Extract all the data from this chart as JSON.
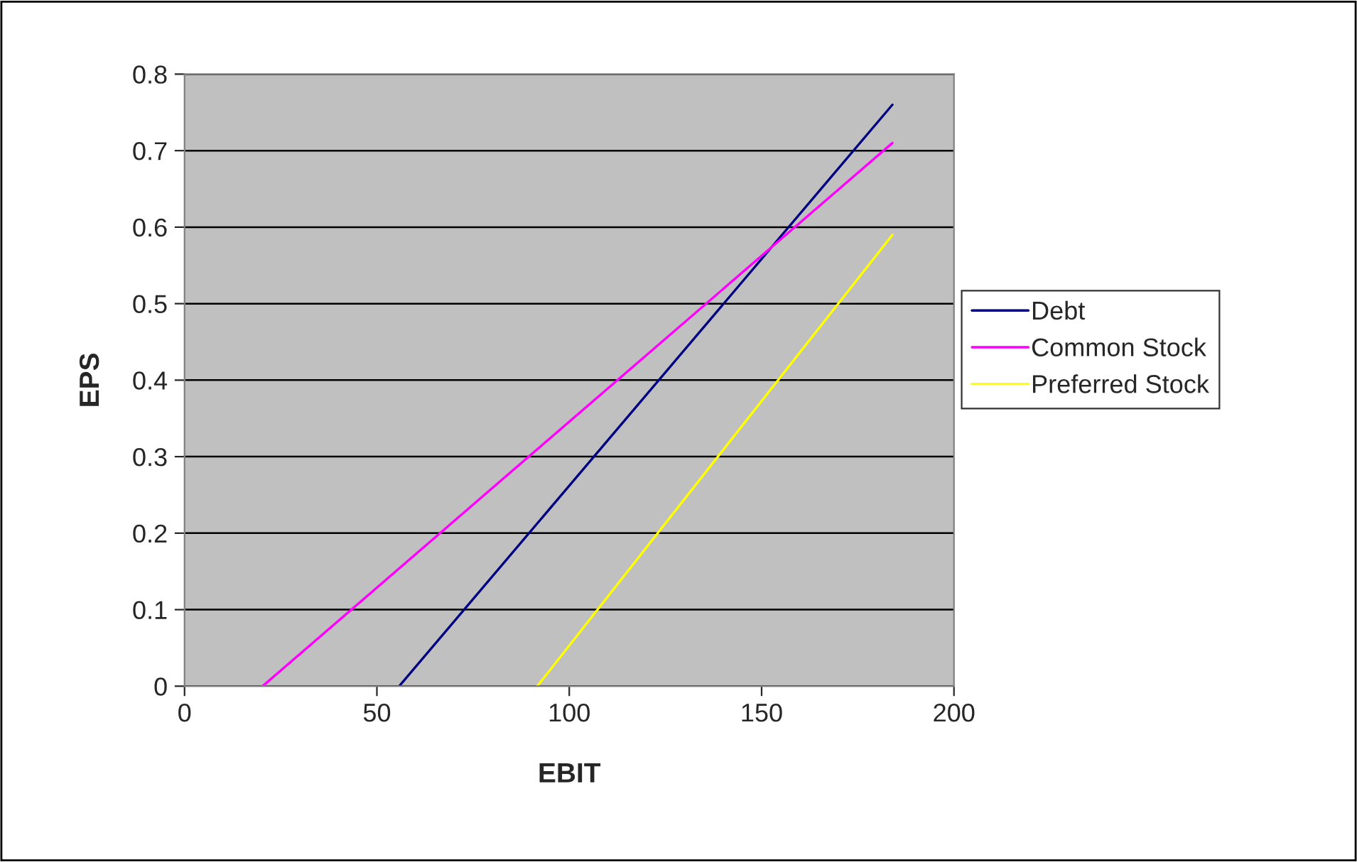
{
  "chart_data": {
    "type": "line",
    "xlabel": "EBIT",
    "ylabel": "EPS",
    "series": [
      {
        "name": "Debt",
        "color": "#000080",
        "x": [
          55.8,
          184
        ],
        "values": [
          0,
          0.76
        ]
      },
      {
        "name": "Common Stock",
        "color": "#ff00ff",
        "x": [
          20.3,
          184
        ],
        "values": [
          0,
          0.71
        ]
      },
      {
        "name": "Preferred Stock",
        "color": "#ffff00",
        "x": [
          91.7,
          184
        ],
        "values": [
          0,
          0.59
        ]
      }
    ],
    "xlim": [
      0,
      200
    ],
    "xticks": [
      0,
      50,
      100,
      150,
      200
    ],
    "ylim": [
      0,
      0.8
    ],
    "yticks": [
      0,
      0.1,
      0.2,
      0.3,
      0.4,
      0.5,
      0.6,
      0.7,
      0.8
    ],
    "grid": "y",
    "legend": "right",
    "marker": "none",
    "line_style": "solid"
  }
}
